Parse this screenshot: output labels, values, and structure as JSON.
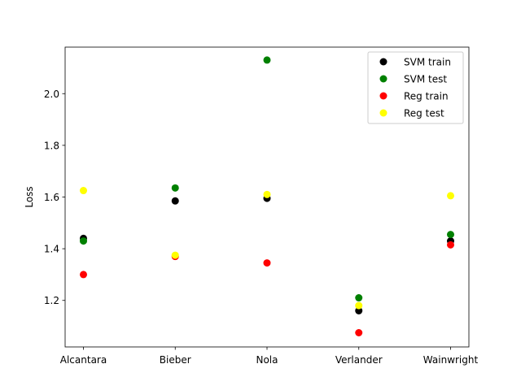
{
  "chart_data": {
    "type": "scatter",
    "title": "",
    "xlabel": "",
    "ylabel": "Loss",
    "categories": [
      "Alcantara",
      "Bieber",
      "Nola",
      "Verlander",
      "Wainwright"
    ],
    "ylim": [
      1.02,
      2.18
    ],
    "yticks": [
      1.2,
      1.4,
      1.6,
      1.8,
      2.0
    ],
    "ytick_labels": [
      "1.2",
      "1.4",
      "1.6",
      "1.8",
      "2.0"
    ],
    "grid": false,
    "legend_position": "top-right",
    "series": [
      {
        "name": "SVM train",
        "color": "#000000",
        "values": [
          1.44,
          1.585,
          1.595,
          1.16,
          1.43
        ]
      },
      {
        "name": "SVM test",
        "color": "#008000",
        "values": [
          1.43,
          1.635,
          2.13,
          1.21,
          1.455
        ]
      },
      {
        "name": "Reg train",
        "color": "#ff0000",
        "values": [
          1.3,
          1.37,
          1.345,
          1.075,
          1.415
        ]
      },
      {
        "name": "Reg test",
        "color": "#ffff00",
        "values": [
          1.625,
          1.375,
          1.61,
          1.18,
          1.605
        ]
      }
    ]
  }
}
